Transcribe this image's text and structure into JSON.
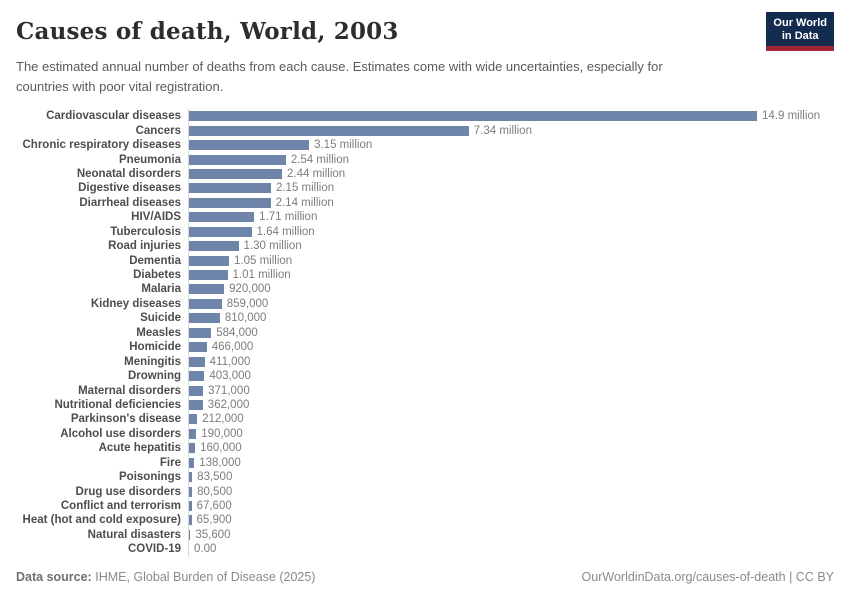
{
  "header": {
    "title": "Causes of death, World, 2003",
    "subtitle": "The estimated annual number of deaths from each cause. Estimates come with wide uncertainties, especially for\ncountries with poor vital registration.",
    "logo_line1": "Our World",
    "logo_line2": "in Data",
    "logo_bg_color": "#122B4F",
    "logo_accent_color": "#A02638"
  },
  "chart_data": {
    "type": "bar",
    "orientation": "horizontal",
    "title": "Causes of death, World, 2003",
    "xlabel": "",
    "ylabel": "",
    "xlim": [
      0,
      14900000
    ],
    "grid": false,
    "legend": "none",
    "bar_color": "#6E84A9",
    "categories": [
      "Cardiovascular diseases",
      "Cancers",
      "Chronic respiratory diseases",
      "Pneumonia",
      "Neonatal disorders",
      "Digestive diseases",
      "Diarrheal diseases",
      "HIV/AIDS",
      "Tuberculosis",
      "Road injuries",
      "Dementia",
      "Diabetes",
      "Malaria",
      "Kidney diseases",
      "Suicide",
      "Measles",
      "Homicide",
      "Meningitis",
      "Drowning",
      "Maternal disorders",
      "Nutritional deficiencies",
      "Parkinson's disease",
      "Alcohol use disorders",
      "Acute hepatitis",
      "Fire",
      "Poisonings",
      "Drug use disorders",
      "Conflict and terrorism",
      "Heat (hot and cold exposure)",
      "Natural disasters",
      "COVID-19"
    ],
    "values": [
      14900000,
      7340000,
      3150000,
      2540000,
      2440000,
      2150000,
      2140000,
      1710000,
      1640000,
      1300000,
      1050000,
      1010000,
      920000,
      859000,
      810000,
      584000,
      466000,
      411000,
      403000,
      371000,
      362000,
      212000,
      190000,
      160000,
      138000,
      83500,
      80500,
      67600,
      65900,
      35600,
      0
    ],
    "value_labels": [
      "14.9 million",
      "7.34 million",
      "3.15 million",
      "2.54 million",
      "2.44 million",
      "2.15 million",
      "2.14 million",
      "1.71 million",
      "1.64 million",
      "1.30 million",
      "1.05 million",
      "1.01 million",
      "920,000",
      "859,000",
      "810,000",
      "584,000",
      "466,000",
      "411,000",
      "403,000",
      "371,000",
      "362,000",
      "212,000",
      "190,000",
      "160,000",
      "138,000",
      "83,500",
      "80,500",
      "67,600",
      "65,900",
      "35,600",
      "0.00"
    ]
  },
  "footer": {
    "datasource_label": "Data source:",
    "datasource_value": "IHME, Global Burden of Disease (2025)",
    "url": "OurWorldinData.org/causes-of-death",
    "separator": " | ",
    "license": "CC BY"
  }
}
